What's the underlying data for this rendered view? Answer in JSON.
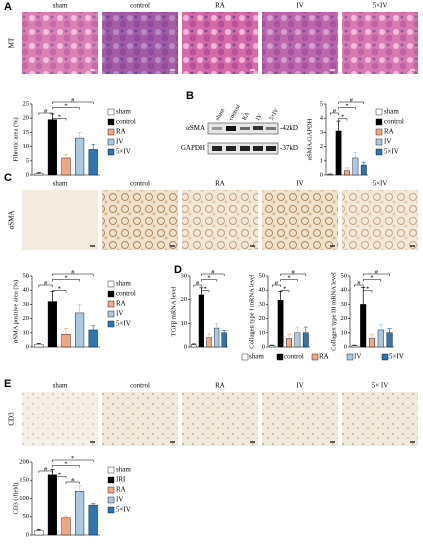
{
  "panel_labels": [
    "A",
    "B",
    "C",
    "D",
    "E"
  ],
  "image_rows": [
    {
      "row_label": "MT",
      "columns": [
        "sham",
        "control",
        "RA",
        "IV",
        "5×IV"
      ]
    },
    {
      "row_label": "αSMA",
      "columns": [
        "sham",
        "control",
        "RA",
        "IV",
        "5×IV"
      ]
    },
    {
      "row_label": "CD3",
      "columns": [
        "sham",
        "control",
        "RA",
        "IV",
        "5× IV"
      ]
    }
  ],
  "blot": {
    "columns": [
      "sham",
      "control",
      "RA",
      "IV",
      "5×IV"
    ],
    "bands": [
      {
        "name": "αSMA",
        "size": "-42kD"
      },
      {
        "name": "GAPDH",
        "size": "-37kD"
      }
    ]
  },
  "chart_data": [
    {
      "type": "bar",
      "y_label": "Fibrotic area (%)",
      "categories": [
        "sham",
        "control",
        "RA",
        "IV",
        "5×IV"
      ],
      "values": [
        0.5,
        19.5,
        6,
        13,
        9
      ],
      "errors": [
        0.3,
        2,
        1.2,
        2,
        1.8
      ],
      "colors": [
        "#ffffff",
        "#000000",
        "#f4a582",
        "#a9c9e3",
        "#2e75b6"
      ],
      "ylim": [
        0,
        25
      ],
      "yticks": [
        0,
        5,
        10,
        15,
        20,
        25
      ],
      "legend": "right",
      "significance": [
        {
          "label": "#",
          "pair": [
            1,
            4
          ]
        },
        {
          "label": "*",
          "pair": [
            1,
            3
          ]
        },
        {
          "label": "#",
          "pair": [
            0,
            1
          ]
        },
        {
          "label": "*",
          "pair": [
            1,
            2
          ]
        }
      ]
    },
    {
      "type": "bar",
      "y_label": "αSMA/GAPDH",
      "categories": [
        "sham",
        "control",
        "RA",
        "IV",
        "5×IV"
      ],
      "values": [
        0.05,
        3.1,
        0.3,
        1.2,
        0.7
      ],
      "errors": [
        0.02,
        0.7,
        0.2,
        0.4,
        0.2
      ],
      "colors": [
        "#ffffff",
        "#000000",
        "#f4a582",
        "#a9c9e3",
        "#2e75b6"
      ],
      "ylim": [
        0,
        5
      ],
      "yticks": [
        0,
        1,
        2,
        3,
        4,
        5
      ],
      "legend": "right",
      "significance": [
        {
          "label": "#",
          "pair": [
            1,
            4
          ]
        },
        {
          "label": "*",
          "pair": [
            1,
            3
          ]
        },
        {
          "label": "#",
          "pair": [
            0,
            1
          ]
        },
        {
          "label": "*",
          "pair": [
            1,
            2
          ]
        }
      ]
    },
    {
      "type": "bar",
      "y_label": "αSMA positive area (%)",
      "categories": [
        "sham",
        "control",
        "RA",
        "IV",
        "5×IV"
      ],
      "values": [
        2,
        32,
        9,
        24,
        12
      ],
      "errors": [
        0.5,
        7,
        4,
        6,
        3
      ],
      "colors": [
        "#ffffff",
        "#000000",
        "#f4a582",
        "#a9c9e3",
        "#2e75b6"
      ],
      "ylim": [
        0,
        50
      ],
      "yticks": [
        0,
        10,
        20,
        30,
        40,
        50
      ],
      "legend": "right",
      "significance": [
        {
          "label": "#",
          "pair": [
            1,
            4
          ]
        },
        {
          "label": "*",
          "pair": [
            1,
            3
          ]
        },
        {
          "label": "#",
          "pair": [
            0,
            1
          ]
        },
        {
          "label": "*",
          "pair": [
            1,
            2
          ]
        }
      ]
    },
    {
      "type": "bar",
      "y_label": "TGFβ mRNA level",
      "values": [
        1,
        22,
        4,
        8,
        6
      ],
      "errors": [
        0.3,
        3,
        1.5,
        2,
        1
      ],
      "colors": [
        "#ffffff",
        "#000000",
        "#f4a582",
        "#a9c9e3",
        "#2e75b6"
      ],
      "ylim": [
        0,
        30
      ],
      "yticks": [
        0,
        10,
        20,
        30
      ],
      "legend": "none",
      "significance": [
        {
          "label": "#",
          "pair": [
            1,
            4
          ]
        },
        {
          "label": "*",
          "pair": [
            1,
            3
          ]
        },
        {
          "label": "#",
          "pair": [
            0,
            1
          ]
        },
        {
          "label": "*",
          "pair": [
            1,
            2
          ]
        }
      ]
    },
    {
      "type": "bar",
      "y_label": "Collagen type I mRNA level",
      "categories": [
        "sham",
        "control",
        "RA",
        "IV",
        "5×IV"
      ],
      "values": [
        1,
        33,
        6,
        10,
        10
      ],
      "errors": [
        0.3,
        6,
        3,
        4,
        4
      ],
      "colors": [
        "#ffffff",
        "#000000",
        "#f4a582",
        "#a9c9e3",
        "#2e75b6"
      ],
      "ylim": [
        0,
        50
      ],
      "yticks": [
        0,
        10,
        20,
        30,
        40,
        50
      ],
      "legend": "bottom",
      "significance": [
        {
          "label": "#",
          "pair": [
            1,
            4
          ]
        },
        {
          "label": "*",
          "pair": [
            1,
            3
          ]
        },
        {
          "label": "#",
          "pair": [
            0,
            1
          ]
        },
        {
          "label": "*",
          "pair": [
            1,
            2
          ]
        }
      ]
    },
    {
      "type": "bar",
      "y_label": "Collagen type III mRNA level",
      "values": [
        1,
        30,
        6,
        12,
        10
      ],
      "errors": [
        0.3,
        12,
        3,
        4,
        3
      ],
      "colors": [
        "#ffffff",
        "#000000",
        "#f4a582",
        "#a9c9e3",
        "#2e75b6"
      ],
      "ylim": [
        0,
        50
      ],
      "yticks": [
        0,
        10,
        20,
        30,
        40,
        50
      ],
      "legend": "none",
      "significance": [
        {
          "label": "#",
          "pair": [
            1,
            4
          ]
        },
        {
          "label": "*",
          "pair": [
            1,
            3
          ]
        },
        {
          "label": "#",
          "pair": [
            0,
            1
          ]
        },
        {
          "label": "*",
          "pair": [
            1,
            2
          ]
        }
      ]
    },
    {
      "type": "bar",
      "y_label": "CD3 (/field)",
      "categories": [
        "sham",
        "IRI",
        "RA",
        "IV",
        "5×IV"
      ],
      "values": [
        12,
        165,
        47,
        120,
        82
      ],
      "errors": [
        3,
        15,
        5,
        15,
        4
      ],
      "colors": [
        "#ffffff",
        "#000000",
        "#f4a582",
        "#a9c9e3",
        "#2e75b6"
      ],
      "ylim": [
        0,
        200
      ],
      "yticks": [
        0,
        50,
        100,
        150,
        200
      ],
      "legend": "right",
      "significance": [
        {
          "label": "*",
          "pair": [
            1,
            4
          ]
        },
        {
          "label": "*",
          "pair": [
            1,
            3
          ]
        },
        {
          "label": "#",
          "pair": [
            0,
            1
          ]
        },
        {
          "label": "*",
          "pair": [
            1,
            2
          ]
        },
        {
          "label": "#",
          "pair": [
            2,
            3
          ]
        }
      ]
    }
  ]
}
